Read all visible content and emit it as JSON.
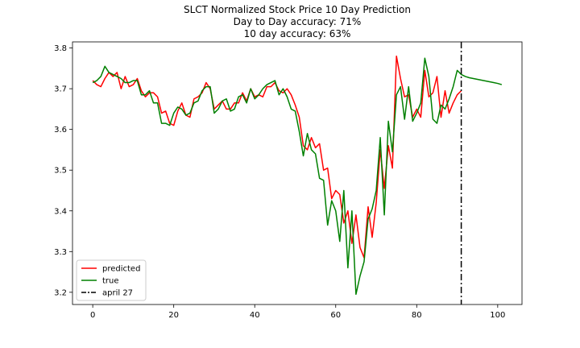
{
  "chart_data": {
    "type": "line",
    "title": [
      "SLCT Normalized Stock Price 10 Day Prediction",
      "Day to Day accuracy: 71%",
      "10 day accuracy: 63%"
    ],
    "xlabel": "",
    "ylabel": "",
    "xlim": [
      -5,
      106
    ],
    "ylim": [
      3.17,
      3.815
    ],
    "xticks": [
      0,
      20,
      40,
      60,
      80,
      100
    ],
    "yticks": [
      3.2,
      3.3,
      3.4,
      3.5,
      3.6,
      3.7,
      3.8
    ],
    "xtick_labels": [
      "0",
      "20",
      "40",
      "60",
      "80",
      "100"
    ],
    "ytick_labels": [
      "3.2",
      "3.3",
      "3.4",
      "3.5",
      "3.6",
      "3.7",
      "3.8"
    ],
    "grid": false,
    "legend_position": "lower-left",
    "series": [
      {
        "name": "predicted",
        "color": "#ff0000",
        "x": [
          0,
          1,
          2,
          3,
          4,
          5,
          6,
          7,
          8,
          9,
          10,
          11,
          12,
          13,
          14,
          15,
          16,
          17,
          18,
          19,
          20,
          21,
          22,
          23,
          24,
          25,
          26,
          27,
          28,
          29,
          30,
          31,
          32,
          33,
          34,
          35,
          36,
          37,
          38,
          39,
          40,
          41,
          42,
          43,
          44,
          45,
          46,
          47,
          48,
          49,
          50,
          51,
          52,
          53,
          54,
          55,
          56,
          57,
          58,
          59,
          60,
          61,
          62,
          63,
          64,
          65,
          66,
          67,
          68,
          69,
          70,
          71,
          72,
          73,
          74,
          75,
          76,
          77,
          78,
          79,
          80,
          81,
          82,
          83,
          84,
          85,
          86,
          87,
          88,
          89,
          90,
          91
        ],
        "values": [
          3.72,
          3.71,
          3.705,
          3.725,
          3.74,
          3.73,
          3.74,
          3.7,
          3.73,
          3.705,
          3.71,
          3.725,
          3.695,
          3.68,
          3.69,
          3.69,
          3.68,
          3.64,
          3.645,
          3.615,
          3.61,
          3.645,
          3.665,
          3.635,
          3.63,
          3.675,
          3.68,
          3.69,
          3.715,
          3.7,
          3.65,
          3.66,
          3.67,
          3.65,
          3.65,
          3.665,
          3.665,
          3.69,
          3.67,
          3.7,
          3.68,
          3.685,
          3.68,
          3.705,
          3.705,
          3.715,
          3.695,
          3.69,
          3.7,
          3.685,
          3.66,
          3.63,
          3.56,
          3.55,
          3.58,
          3.555,
          3.565,
          3.5,
          3.505,
          3.43,
          3.45,
          3.44,
          3.37,
          3.4,
          3.32,
          3.39,
          3.31,
          3.285,
          3.41,
          3.335,
          3.42,
          3.55,
          3.455,
          3.56,
          3.505,
          3.78,
          3.725,
          3.68,
          3.685,
          3.63,
          3.65,
          3.63,
          3.745,
          3.68,
          3.69,
          3.73,
          3.63,
          3.695,
          3.64,
          3.665,
          3.685,
          3.695
        ]
      },
      {
        "name": "true",
        "color": "#008000",
        "x": [
          0,
          1,
          2,
          3,
          4,
          5,
          6,
          7,
          8,
          9,
          10,
          11,
          12,
          13,
          14,
          15,
          16,
          17,
          18,
          19,
          20,
          21,
          22,
          23,
          24,
          25,
          26,
          27,
          28,
          29,
          30,
          31,
          32,
          33,
          34,
          35,
          36,
          37,
          38,
          39,
          40,
          41,
          42,
          43,
          44,
          45,
          46,
          47,
          48,
          49,
          50,
          51,
          52,
          53,
          54,
          55,
          56,
          57,
          58,
          59,
          60,
          61,
          62,
          63,
          64,
          65,
          66,
          67,
          68,
          69,
          70,
          71,
          72,
          73,
          74,
          75,
          76,
          77,
          78,
          79,
          80,
          81,
          82,
          83,
          84,
          85,
          86,
          87,
          88,
          89,
          90,
          91,
          92,
          93,
          94,
          95,
          96,
          97,
          98,
          99,
          100,
          101
        ],
        "values": [
          3.715,
          3.72,
          3.73,
          3.755,
          3.74,
          3.735,
          3.73,
          3.725,
          3.715,
          3.715,
          3.72,
          3.72,
          3.685,
          3.685,
          3.695,
          3.665,
          3.665,
          3.615,
          3.615,
          3.61,
          3.64,
          3.655,
          3.65,
          3.635,
          3.64,
          3.665,
          3.67,
          3.695,
          3.705,
          3.705,
          3.64,
          3.65,
          3.67,
          3.675,
          3.645,
          3.65,
          3.68,
          3.685,
          3.665,
          3.7,
          3.675,
          3.685,
          3.7,
          3.71,
          3.715,
          3.72,
          3.685,
          3.7,
          3.68,
          3.65,
          3.645,
          3.595,
          3.535,
          3.59,
          3.55,
          3.54,
          3.48,
          3.475,
          3.365,
          3.425,
          3.4,
          3.325,
          3.45,
          3.26,
          3.4,
          3.195,
          3.24,
          3.275,
          3.38,
          3.405,
          3.45,
          3.58,
          3.39,
          3.62,
          3.545,
          3.685,
          3.705,
          3.625,
          3.705,
          3.62,
          3.64,
          3.665,
          3.775,
          3.73,
          3.625,
          3.615,
          3.66,
          3.65,
          3.675,
          3.705,
          3.745,
          3.735,
          3.73,
          3.727,
          3.725,
          3.723,
          3.721,
          3.719,
          3.717,
          3.715,
          3.713,
          3.71
        ]
      }
    ],
    "vlines": [
      {
        "name": "april 27",
        "x": 91,
        "color": "#000000",
        "style": "dash-dot"
      }
    ],
    "legend": [
      {
        "label": "predicted",
        "color": "#ff0000",
        "style": "solid"
      },
      {
        "label": "true",
        "color": "#008000",
        "style": "solid"
      },
      {
        "label": "april 27",
        "color": "#000000",
        "style": "dash-dot"
      }
    ]
  }
}
